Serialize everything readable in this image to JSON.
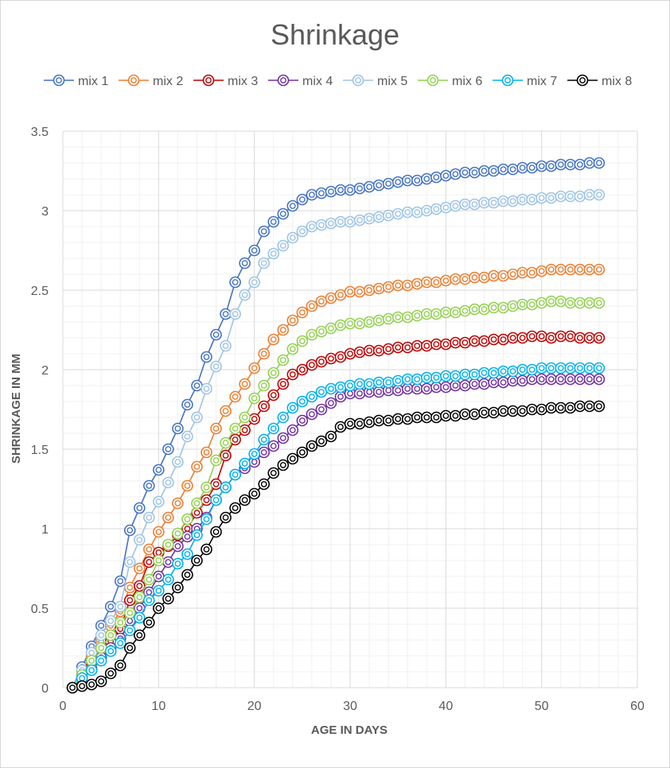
{
  "chart_data": {
    "type": "line",
    "title": "Shrinkage",
    "xlabel": "AGE IN DAYS",
    "ylabel": "SHRINKAGE IN MM",
    "xlim": [
      0,
      60
    ],
    "ylim": [
      0,
      3.5
    ],
    "x_ticks": [
      0,
      10,
      20,
      30,
      40,
      50,
      60
    ],
    "y_ticks": [
      0,
      0.5,
      1,
      1.5,
      2,
      2.5,
      3,
      3.5
    ],
    "x_tick_labels": [
      "0",
      "10",
      "20",
      "30",
      "40",
      "50",
      "60"
    ],
    "y_tick_labels": [
      "0",
      "0.5",
      "1",
      "1.5",
      "2",
      "2.5",
      "3",
      "3.5"
    ],
    "grid": true,
    "legend_position": "top",
    "x": [
      1,
      2,
      3,
      4,
      5,
      6,
      7,
      8,
      9,
      10,
      11,
      12,
      13,
      14,
      15,
      16,
      17,
      18,
      19,
      20,
      21,
      22,
      23,
      24,
      25,
      26,
      27,
      28,
      29,
      30,
      31,
      32,
      33,
      34,
      35,
      36,
      37,
      38,
      39,
      40,
      41,
      42,
      43,
      44,
      45,
      46,
      47,
      48,
      49,
      50,
      51,
      52,
      53,
      54,
      55,
      56
    ],
    "series": [
      {
        "name": "mix 1",
        "color": "#4472c4",
        "values": [
          0,
          0.13,
          0.26,
          0.39,
          0.51,
          0.67,
          0.99,
          1.13,
          1.27,
          1.37,
          1.5,
          1.63,
          1.78,
          1.9,
          2.08,
          2.22,
          2.35,
          2.55,
          2.67,
          2.75,
          2.87,
          2.93,
          2.98,
          3.03,
          3.07,
          3.1,
          3.11,
          3.12,
          3.13,
          3.13,
          3.14,
          3.15,
          3.16,
          3.17,
          3.18,
          3.19,
          3.19,
          3.2,
          3.21,
          3.22,
          3.23,
          3.24,
          3.24,
          3.25,
          3.25,
          3.26,
          3.26,
          3.27,
          3.27,
          3.28,
          3.28,
          3.29,
          3.29,
          3.29,
          3.3,
          3.3
        ]
      },
      {
        "name": "mix 2",
        "color": "#ed7d31",
        "values": [
          0,
          0.1,
          0.2,
          0.29,
          0.39,
          0.48,
          0.63,
          0.75,
          0.87,
          0.98,
          1.07,
          1.16,
          1.27,
          1.39,
          1.48,
          1.63,
          1.74,
          1.83,
          1.91,
          2.01,
          2.1,
          2.19,
          2.25,
          2.31,
          2.36,
          2.4,
          2.43,
          2.45,
          2.47,
          2.49,
          2.49,
          2.5,
          2.51,
          2.52,
          2.53,
          2.53,
          2.54,
          2.55,
          2.55,
          2.56,
          2.57,
          2.57,
          2.58,
          2.58,
          2.59,
          2.59,
          2.6,
          2.61,
          2.61,
          2.62,
          2.63,
          2.63,
          2.63,
          2.63,
          2.63,
          2.63
        ]
      },
      {
        "name": "mix 3",
        "color": "#c00000",
        "values": [
          0,
          0.08,
          0.16,
          0.23,
          0.29,
          0.37,
          0.55,
          0.64,
          0.79,
          0.85,
          0.89,
          0.96,
          1.0,
          1.1,
          1.18,
          1.28,
          1.46,
          1.56,
          1.62,
          1.69,
          1.77,
          1.84,
          1.91,
          1.97,
          2.0,
          2.03,
          2.05,
          2.07,
          2.08,
          2.1,
          2.11,
          2.12,
          2.12,
          2.13,
          2.14,
          2.14,
          2.15,
          2.15,
          2.16,
          2.16,
          2.17,
          2.17,
          2.18,
          2.18,
          2.19,
          2.19,
          2.2,
          2.2,
          2.21,
          2.21,
          2.2,
          2.21,
          2.21,
          2.2,
          2.2,
          2.2
        ]
      },
      {
        "name": "mix 4",
        "color": "#7030a0",
        "values": [
          0,
          0.06,
          0.12,
          0.19,
          0.25,
          0.31,
          0.42,
          0.5,
          0.6,
          0.7,
          0.79,
          0.89,
          0.95,
          1.0,
          1.07,
          1.18,
          1.26,
          1.34,
          1.38,
          1.42,
          1.48,
          1.52,
          1.57,
          1.62,
          1.68,
          1.72,
          1.75,
          1.79,
          1.83,
          1.85,
          1.85,
          1.86,
          1.86,
          1.87,
          1.87,
          1.88,
          1.88,
          1.88,
          1.89,
          1.89,
          1.9,
          1.9,
          1.91,
          1.91,
          1.92,
          1.92,
          1.93,
          1.93,
          1.94,
          1.94,
          1.94,
          1.94,
          1.94,
          1.94,
          1.94,
          1.94
        ]
      },
      {
        "name": "mix 5",
        "color": "#9dc3e6",
        "values": [
          0,
          0.11,
          0.22,
          0.33,
          0.42,
          0.51,
          0.79,
          0.93,
          1.07,
          1.17,
          1.29,
          1.42,
          1.58,
          1.7,
          1.88,
          2.02,
          2.15,
          2.35,
          2.47,
          2.55,
          2.67,
          2.73,
          2.78,
          2.83,
          2.87,
          2.9,
          2.91,
          2.92,
          2.93,
          2.93,
          2.94,
          2.95,
          2.96,
          2.97,
          2.98,
          2.99,
          2.99,
          3.0,
          3.01,
          3.02,
          3.03,
          3.04,
          3.04,
          3.05,
          3.05,
          3.06,
          3.06,
          3.07,
          3.07,
          3.08,
          3.08,
          3.09,
          3.09,
          3.09,
          3.1,
          3.1
        ]
      },
      {
        "name": "mix 6",
        "color": "#92d050",
        "values": [
          0,
          0.08,
          0.17,
          0.25,
          0.33,
          0.41,
          0.47,
          0.57,
          0.68,
          0.8,
          0.9,
          0.97,
          1.06,
          1.16,
          1.26,
          1.43,
          1.54,
          1.63,
          1.7,
          1.82,
          1.9,
          1.98,
          2.06,
          2.13,
          2.18,
          2.22,
          2.24,
          2.26,
          2.28,
          2.29,
          2.29,
          2.3,
          2.31,
          2.32,
          2.33,
          2.33,
          2.34,
          2.35,
          2.35,
          2.36,
          2.36,
          2.37,
          2.38,
          2.38,
          2.39,
          2.39,
          2.4,
          2.41,
          2.41,
          2.42,
          2.43,
          2.43,
          2.42,
          2.42,
          2.42,
          2.42
        ]
      },
      {
        "name": "mix 7",
        "color": "#00b0f0",
        "values": [
          0,
          0.06,
          0.11,
          0.17,
          0.23,
          0.28,
          0.36,
          0.44,
          0.55,
          0.61,
          0.68,
          0.78,
          0.84,
          0.96,
          1.06,
          1.18,
          1.26,
          1.34,
          1.41,
          1.47,
          1.56,
          1.63,
          1.7,
          1.76,
          1.8,
          1.83,
          1.86,
          1.88,
          1.89,
          1.9,
          1.91,
          1.91,
          1.92,
          1.92,
          1.93,
          1.94,
          1.94,
          1.95,
          1.95,
          1.96,
          1.96,
          1.97,
          1.97,
          1.98,
          1.98,
          1.99,
          1.99,
          2.0,
          2.0,
          2.01,
          2.01,
          2.01,
          2.01,
          2.01,
          2.01,
          2.01
        ]
      },
      {
        "name": "mix 8",
        "color": "#000000",
        "values": [
          0,
          0.01,
          0.02,
          0.04,
          0.09,
          0.14,
          0.25,
          0.33,
          0.41,
          0.5,
          0.56,
          0.63,
          0.71,
          0.8,
          0.87,
          0.98,
          1.07,
          1.13,
          1.18,
          1.22,
          1.28,
          1.35,
          1.4,
          1.44,
          1.48,
          1.52,
          1.55,
          1.58,
          1.64,
          1.66,
          1.66,
          1.67,
          1.68,
          1.68,
          1.69,
          1.69,
          1.7,
          1.7,
          1.7,
          1.71,
          1.71,
          1.72,
          1.72,
          1.73,
          1.73,
          1.74,
          1.74,
          1.74,
          1.75,
          1.75,
          1.76,
          1.76,
          1.76,
          1.77,
          1.77,
          1.77
        ]
      }
    ]
  }
}
